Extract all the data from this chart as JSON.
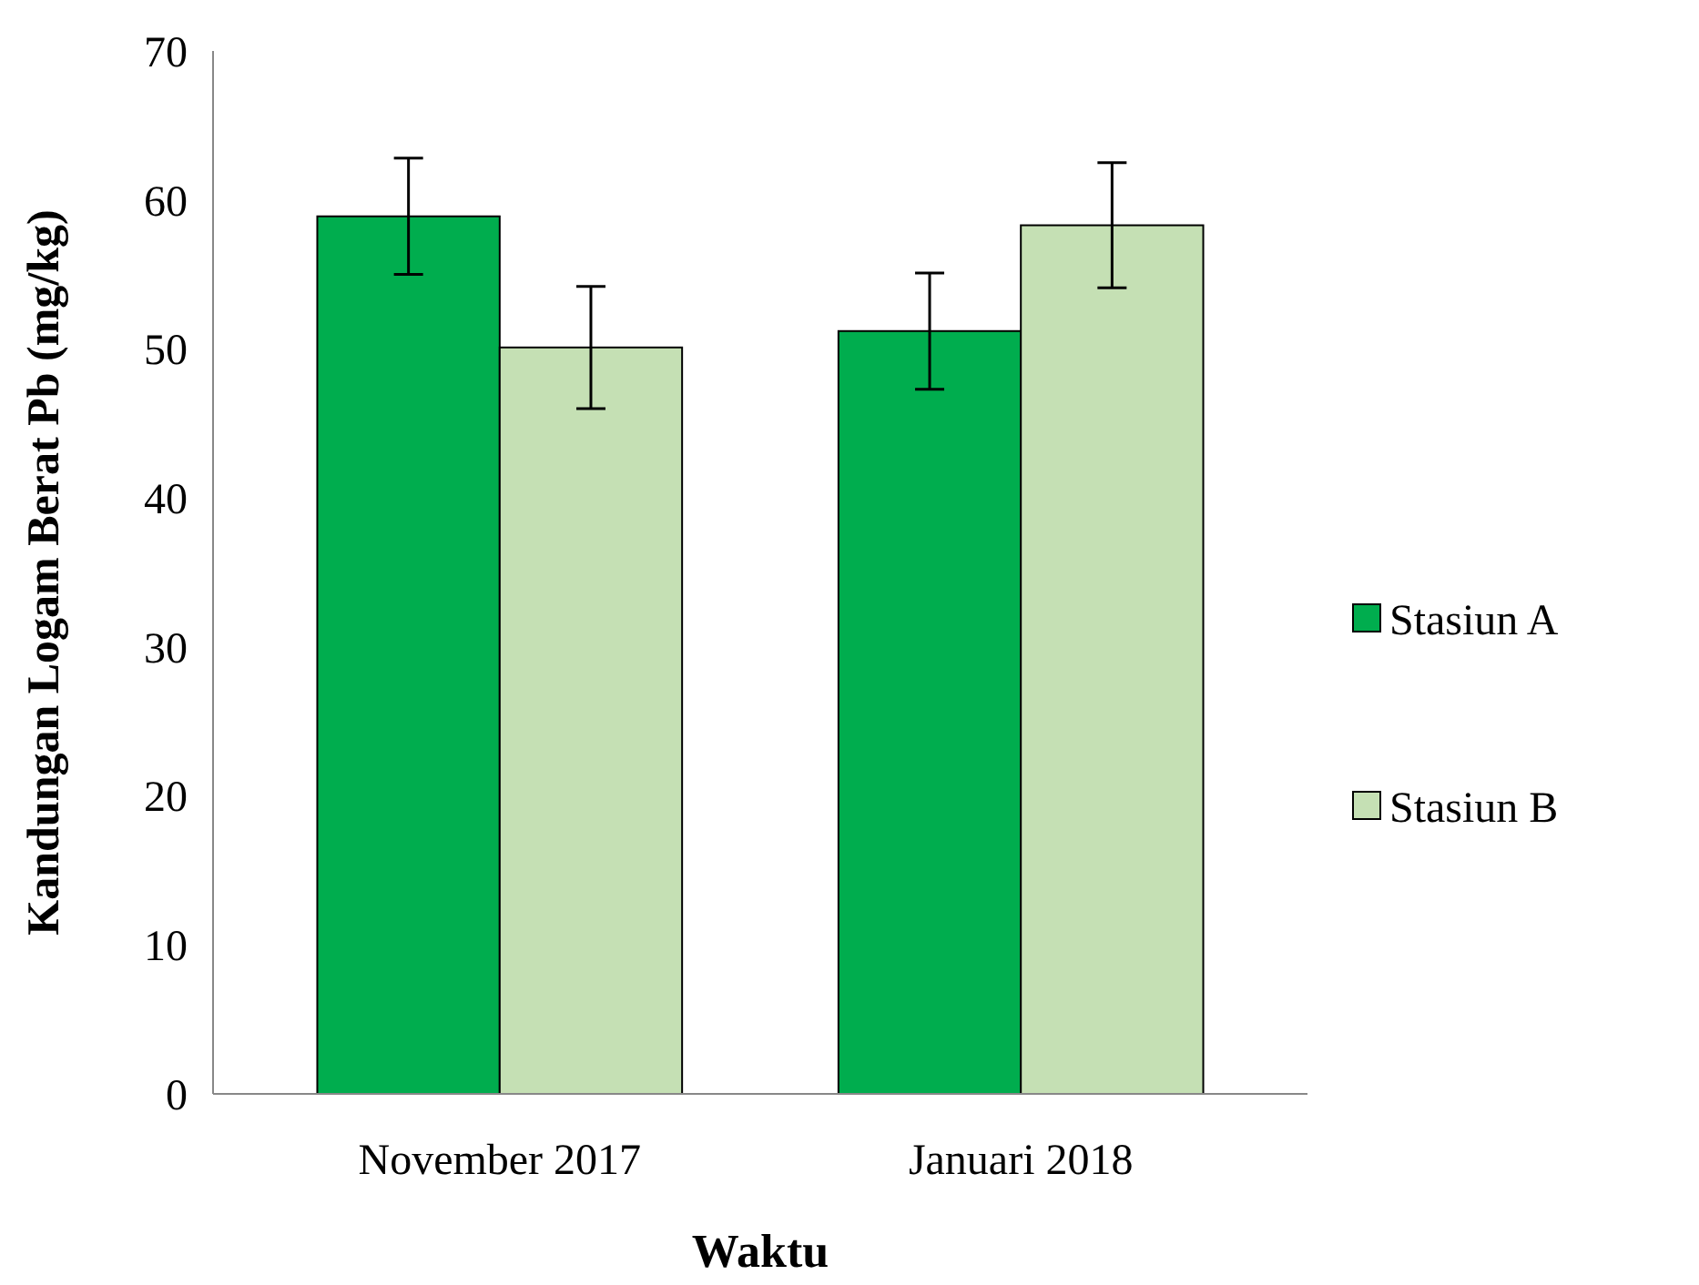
{
  "chart_data": {
    "type": "bar",
    "xlabel": "Waktu",
    "ylabel": "Kandungan Logam Berat Pb (mg/kg)",
    "categories": [
      "November 2017",
      "Januari 2018"
    ],
    "series": [
      {
        "name": "Stasiun A",
        "color": "#00ad4e",
        "values": [
          58.9,
          51.2
        ],
        "errors": [
          3.9,
          3.9
        ]
      },
      {
        "name": "Stasiun B",
        "color": "#c5e0b4",
        "values": [
          50.1,
          58.3
        ],
        "errors": [
          4.1,
          4.2
        ]
      }
    ],
    "ylim": [
      0,
      70
    ],
    "yticks": [
      0,
      10,
      20,
      30,
      40,
      50,
      60,
      70
    ],
    "grid": false,
    "legend": "right"
  }
}
